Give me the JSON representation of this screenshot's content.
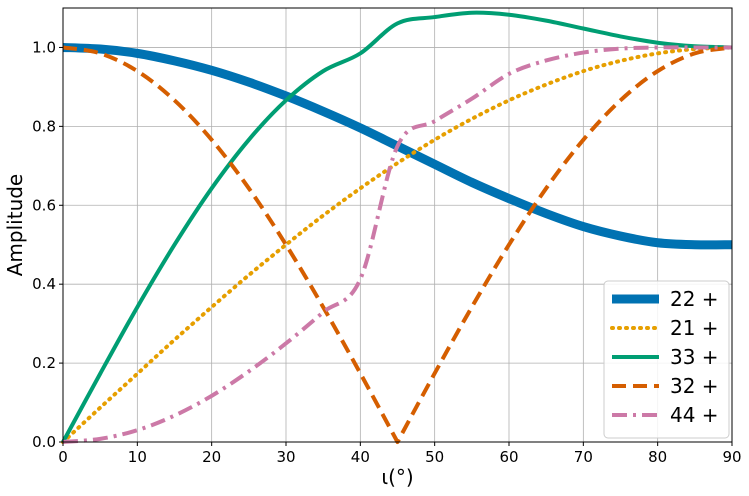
{
  "chart_data": {
    "type": "line",
    "xlabel": "ι(°)",
    "ylabel": "Amplitude",
    "xlim": [
      0,
      90
    ],
    "ylim": [
      0,
      1.1
    ],
    "xticks": [
      "0",
      "10",
      "20",
      "30",
      "40",
      "50",
      "60",
      "70",
      "80",
      "90"
    ],
    "yticks": [
      "0.0",
      "0.2",
      "0.4",
      "0.6",
      "0.8",
      "1.0"
    ],
    "grid": true,
    "legend_position": "bottom-right",
    "x": [
      0,
      5,
      10,
      15,
      20,
      25,
      30,
      35,
      40,
      45,
      50,
      55,
      60,
      65,
      70,
      75,
      80,
      85,
      90
    ],
    "series": [
      {
        "name": "22 +",
        "color": "#0072b2",
        "style": "solid",
        "width": "thick",
        "values": [
          1.0,
          0.996,
          0.985,
          0.966,
          0.942,
          0.912,
          0.877,
          0.838,
          0.796,
          0.75,
          0.704,
          0.658,
          0.617,
          0.579,
          0.546,
          0.522,
          0.505,
          0.5,
          0.5
        ]
      },
      {
        "name": "21 +",
        "color": "#e69f00",
        "style": "dotted",
        "width": "normal",
        "values": [
          0.0,
          0.087,
          0.173,
          0.259,
          0.342,
          0.423,
          0.5,
          0.574,
          0.643,
          0.707,
          0.766,
          0.819,
          0.866,
          0.906,
          0.94,
          0.966,
          0.985,
          0.996,
          1.0
        ]
      },
      {
        "name": "33 +",
        "color": "#009e73",
        "style": "solid",
        "width": "normal",
        "values": [
          0.0,
          0.173,
          0.342,
          0.5,
          0.643,
          0.766,
          0.866,
          0.94,
          0.985,
          1.061,
          1.077,
          1.088,
          1.083,
          1.068,
          1.048,
          1.028,
          1.012,
          1.003,
          1.0
        ]
      },
      {
        "name": "32 +",
        "color": "#d55e00",
        "style": "dashed",
        "width": "normal",
        "values": [
          1.0,
          0.985,
          0.94,
          0.866,
          0.766,
          0.643,
          0.5,
          0.342,
          0.174,
          0.0,
          0.174,
          0.342,
          0.5,
          0.643,
          0.766,
          0.866,
          0.94,
          0.985,
          1.0
        ]
      },
      {
        "name": "44 +",
        "color": "#cc79a7",
        "style": "dashdot",
        "width": "normal",
        "values": [
          0.0,
          0.008,
          0.03,
          0.067,
          0.117,
          0.179,
          0.25,
          0.329,
          0.413,
          0.75,
          0.813,
          0.87,
          0.933,
          0.967,
          0.987,
          0.997,
          1.0,
          1.0,
          1.0
        ]
      }
    ]
  }
}
